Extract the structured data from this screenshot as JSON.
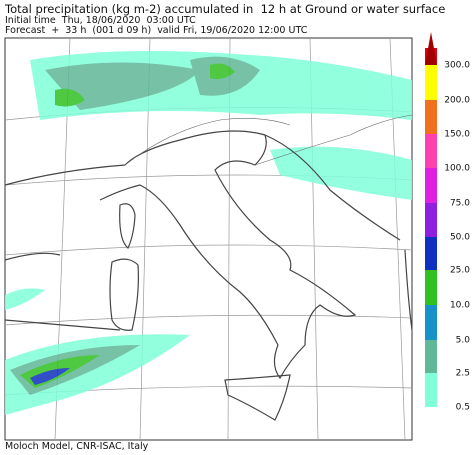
{
  "header": {
    "title": "Total precipitation (kg m-2) accumulated in  12 h at Ground or water surface",
    "initial_time": "Initial time  Thu, 18/06/2020  03:00 UTC",
    "forecast": "Forecast  +  33 h  (001 d 09 h)  valid Fri, 19/06/2020 12:00 UTC"
  },
  "colorbar": {
    "labels": [
      "0.5",
      "2.5",
      "5.0",
      "10.0",
      "25.0",
      "50.0",
      "75.0",
      "100.0",
      "150.0",
      "200.0",
      "300.0"
    ]
  },
  "footer": "Moloch Model, CNR-ISAC, Italy"
}
